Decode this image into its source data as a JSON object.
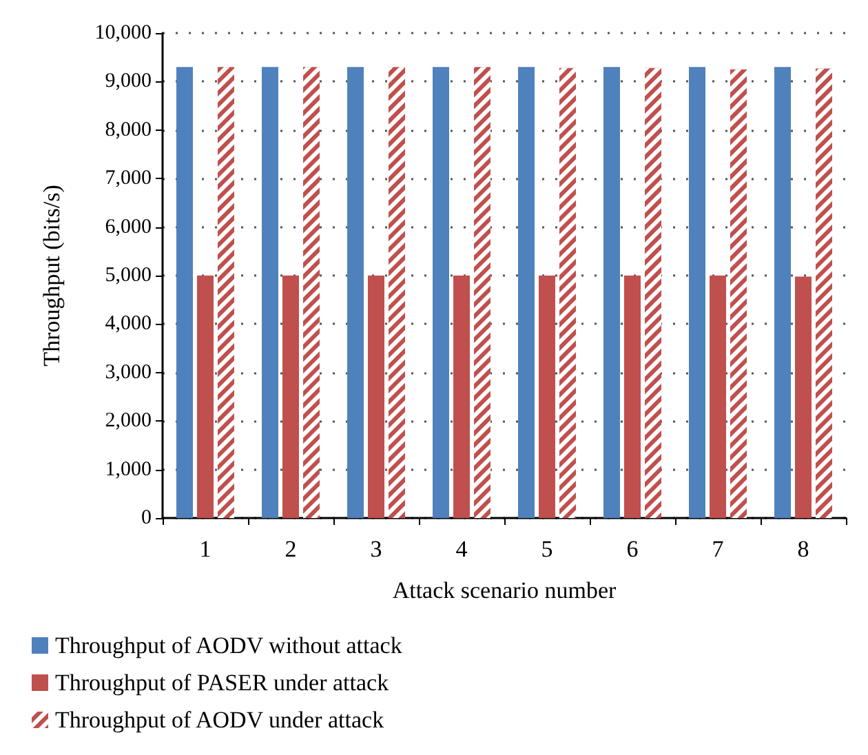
{
  "chart_data": {
    "type": "bar",
    "xlabel": "Attack scenario number",
    "ylabel": "Throughput (bits/s)",
    "categories": [
      "1",
      "2",
      "3",
      "4",
      "5",
      "6",
      "7",
      "8"
    ],
    "series": [
      {
        "name": "Throughput of AODV without attack",
        "color": "#4f81bd",
        "values": [
          9300,
          9300,
          9300,
          9300,
          9300,
          9300,
          9300,
          9300
        ]
      },
      {
        "name": "Throughput of PASER under attack",
        "color": "#c0504d",
        "values": [
          5000,
          5000,
          5000,
          5000,
          5000,
          5000,
          5000,
          4980
        ]
      },
      {
        "name": "Throughput of AODV under attack",
        "color": "#c0504d",
        "values": [
          9300,
          9300,
          9300,
          9300,
          9280,
          9280,
          9250,
          9270
        ]
      }
    ],
    "ylim": [
      0,
      10000
    ],
    "yticks": [
      0,
      {
        "value": 1000,
        "label": "1,000"
      },
      {
        "value": 2000,
        "label": "2,000"
      },
      {
        "value": 3000,
        "label": "3,000"
      },
      {
        "value": 4000,
        "label": "4,000"
      },
      {
        "value": 5000,
        "label": "5,000"
      },
      {
        "value": 6000,
        "label": "6,000"
      },
      {
        "value": 7000,
        "label": "7,000"
      },
      {
        "value": 8000,
        "label": "8,000"
      },
      {
        "value": 9000,
        "label": "9,000"
      },
      {
        "value": 10000,
        "label": "10,000"
      }
    ],
    "grid": "y",
    "legend": "bottom"
  }
}
